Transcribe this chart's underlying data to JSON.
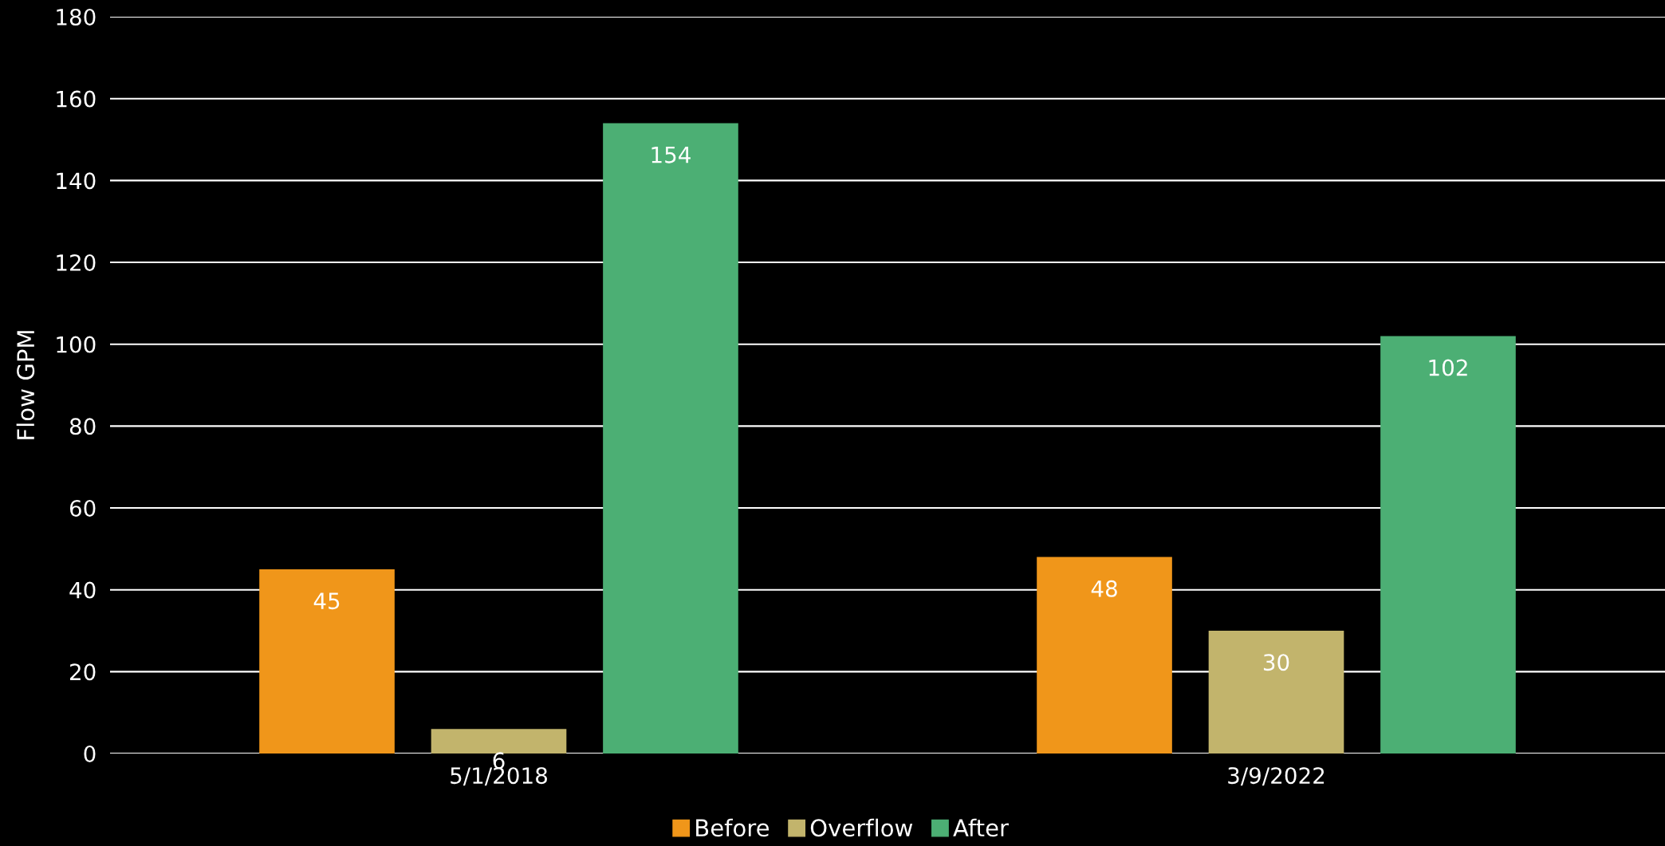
{
  "chart_data": {
    "type": "bar",
    "ylabel": "Flow GPM",
    "categories": [
      "5/1/2018",
      "3/9/2022"
    ],
    "series": [
      {
        "name": "Before",
        "color": "#f0961a",
        "values": [
          45,
          48
        ]
      },
      {
        "name": "Overflow",
        "color": "#c2b46c",
        "values": [
          6,
          30
        ]
      },
      {
        "name": "After",
        "color": "#4caf74",
        "values": [
          154,
          102
        ]
      }
    ],
    "ylim": [
      0,
      180
    ],
    "yticks": [
      0,
      20,
      40,
      60,
      80,
      100,
      120,
      140,
      160,
      180
    ],
    "grid": "y",
    "legend": "bottom",
    "data_labels": true
  }
}
